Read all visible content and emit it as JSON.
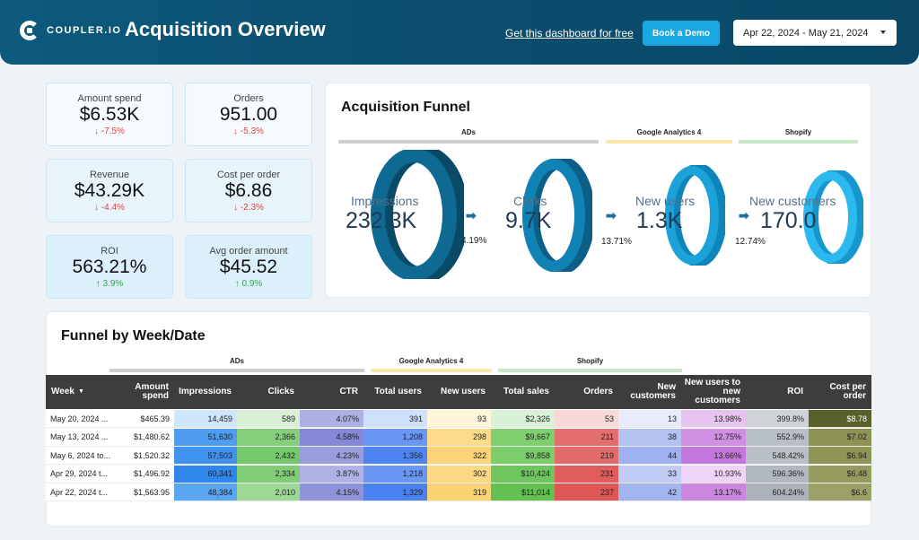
{
  "header": {
    "logo_text": "COUPLER.IO",
    "title": "Acquisition Overview",
    "get_link": "Get this dashboard for free",
    "demo_button": "Book a Demo",
    "date_range": "Apr 22, 2024 - May 21, 2024"
  },
  "kpis": [
    {
      "label": "Amount spend",
      "value": "$6.53K",
      "change": "-7.5%",
      "dir": "down"
    },
    {
      "label": "Orders",
      "value": "951.00",
      "change": "-5.3%",
      "dir": "down"
    },
    {
      "label": "Revenue",
      "value": "$43.29K",
      "change": "-4.4%",
      "dir": "down"
    },
    {
      "label": "Cost per order",
      "value": "$6.86",
      "change": "-2.3%",
      "dir": "down"
    },
    {
      "label": "ROI",
      "value": "563.21%",
      "change": "3.9%",
      "dir": "up"
    },
    {
      "label": "Avg order amount",
      "value": "$45.52",
      "change": "0.9%",
      "dir": "up"
    }
  ],
  "funnel": {
    "title": "Acquisition Funnel",
    "segments": [
      "ADs",
      "Google Analytics 4",
      "Shopify"
    ],
    "stages": [
      {
        "label": "Impressions",
        "value": "232.3K"
      },
      {
        "label": "Clicks",
        "value": "9.7K"
      },
      {
        "label": "New users",
        "value": "1.3K"
      },
      {
        "label": "New customers",
        "value": "170.0"
      }
    ],
    "conversions": [
      "4.19%",
      "13.71%",
      "12.74%"
    ],
    "colors": {
      "dark": "#0c5d7e",
      "mid": "#0e7fae",
      "light": "#18a7dd",
      "lightest": "#2bb7ee"
    }
  },
  "table": {
    "title": "Funnel by Week/Date",
    "segments": [
      "ADs",
      "Google Analytics 4",
      "Shopify"
    ],
    "headers": [
      "Week",
      "Amount spend",
      "Impressions",
      "Clicks",
      "CTR",
      "Total users",
      "New users",
      "Total sales",
      "Orders",
      "New customers",
      "New users to new customers",
      "ROI",
      "Cost per order"
    ],
    "sort_icon": "sort-desc-icon",
    "rows": [
      [
        "May 20, 2024 ...",
        "$465.39",
        "14,459",
        "589",
        "4.07%",
        "391",
        "93",
        "$2,326",
        "53",
        "13",
        "13.98%",
        "399.8%",
        "$8.78"
      ],
      [
        "May 13, 2024 ...",
        "$1,480.62",
        "51,630",
        "2,366",
        "4.58%",
        "1,208",
        "298",
        "$9,667",
        "211",
        "38",
        "12.75%",
        "552.9%",
        "$7.02"
      ],
      [
        "May 6, 2024 to...",
        "$1,520.32",
        "57,503",
        "2,432",
        "4.23%",
        "1,356",
        "322",
        "$9,858",
        "219",
        "44",
        "13.66%",
        "548.42%",
        "$6.94"
      ],
      [
        "Apr 29, 2024 t...",
        "$1,496.92",
        "60,341",
        "2,334",
        "3.87%",
        "1,218",
        "302",
        "$10,424",
        "231",
        "33",
        "10.93%",
        "596.36%",
        "$6.48"
      ],
      [
        "Apr 22, 2024 t...",
        "$1,563.95",
        "48,384",
        "2,010",
        "4.15%",
        "1,329",
        "319",
        "$11,014",
        "237",
        "42",
        "13.17%",
        "604.24%",
        "$6.6"
      ]
    ]
  }
}
